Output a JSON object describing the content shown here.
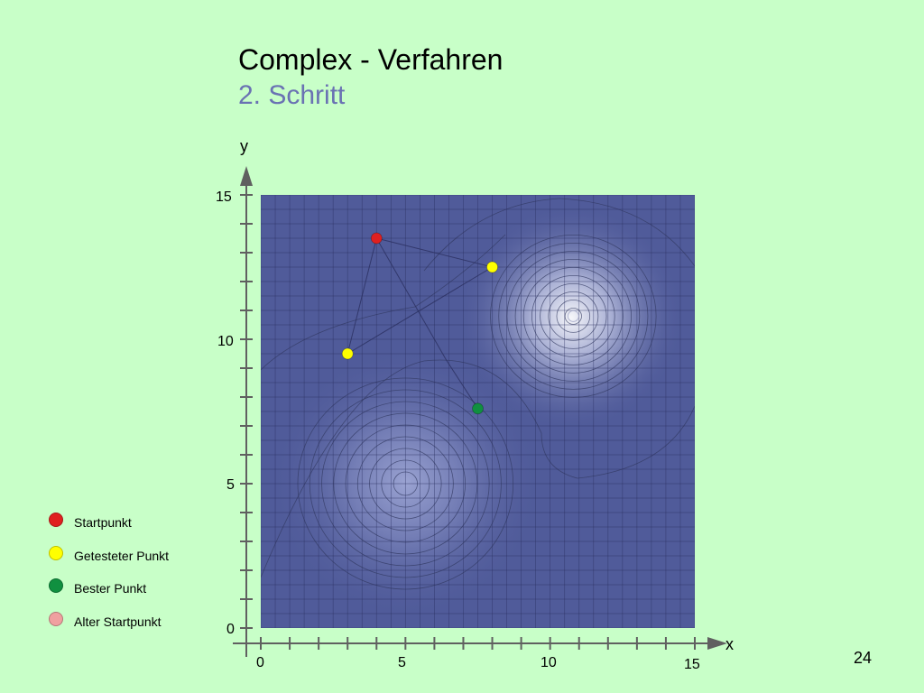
{
  "slide": {
    "title": "Complex - Verfahren",
    "subtitle": "2. Schritt",
    "page_number": "24"
  },
  "legend": {
    "items": [
      {
        "label": "Startpunkt",
        "color": "#e02020"
      },
      {
        "label": "Getesteter Punkt",
        "color": "#ffff00"
      },
      {
        "label": "Bester Punkt",
        "color": "#109040"
      },
      {
        "label": "Alter Startpunkt",
        "color": "#f0a0a0"
      }
    ]
  },
  "chart_data": {
    "type": "scatter",
    "xlabel": "x",
    "ylabel": "y",
    "xlim": [
      0,
      15
    ],
    "ylim": [
      0,
      15
    ],
    "x_tick_labels": [
      "0",
      "5",
      "10",
      "15"
    ],
    "y_tick_labels": [
      "0",
      "5",
      "10",
      "15"
    ],
    "grid": true,
    "colors": {
      "field": "#505b9a",
      "grid": "#2a3060",
      "axis": "#606060",
      "contour": "#303860"
    },
    "maxima": [
      {
        "x": 10.8,
        "y": 10.8
      },
      {
        "x": 5.0,
        "y": 5.0
      }
    ],
    "points": [
      {
        "role": "Startpunkt",
        "x": 4.0,
        "y": 13.5,
        "color": "#e02020"
      },
      {
        "role": "Getesteter Punkt",
        "x": 8.0,
        "y": 12.5,
        "color": "#ffff00"
      },
      {
        "role": "Getesteter Punkt",
        "x": 3.0,
        "y": 9.5,
        "color": "#ffff00"
      },
      {
        "role": "Bester Punkt",
        "x": 7.5,
        "y": 7.6,
        "color": "#109040"
      }
    ],
    "lines": [
      [
        [
          4.0,
          13.5
        ],
        [
          8.0,
          12.5
        ]
      ],
      [
        [
          4.0,
          13.5
        ],
        [
          3.0,
          9.5
        ]
      ],
      [
        [
          4.0,
          13.5
        ],
        [
          6.4,
          9.3
        ]
      ],
      [
        [
          3.0,
          9.5
        ],
        [
          8.0,
          12.5
        ]
      ],
      [
        [
          6.4,
          9.3
        ],
        [
          7.5,
          7.6
        ]
      ]
    ]
  }
}
